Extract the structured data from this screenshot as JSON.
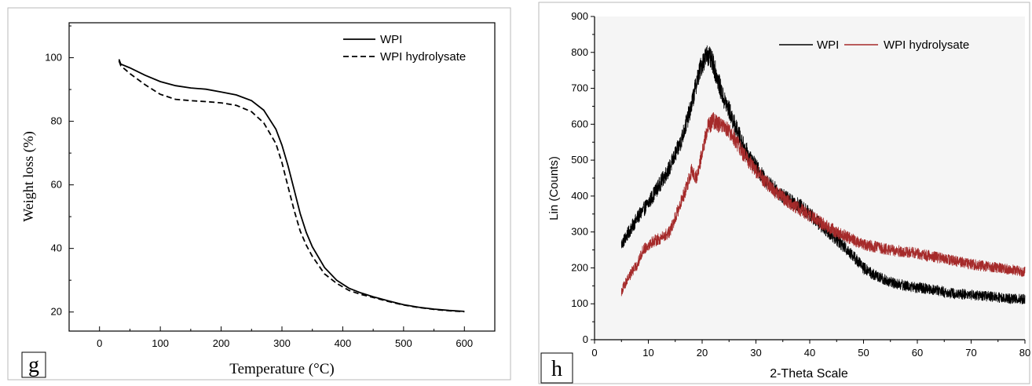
{
  "panels": {
    "g": {
      "label": "g"
    },
    "h": {
      "label": "h"
    }
  },
  "chart_data": [
    {
      "id": "g",
      "type": "line",
      "xlabel": "Temperature (°C)",
      "ylabel": "Weight loss (%)",
      "xlim": [
        -50,
        650
      ],
      "ylim": [
        14,
        111
      ],
      "xticks": [
        0,
        100,
        200,
        300,
        400,
        500,
        600
      ],
      "yticks": [
        20,
        40,
        60,
        80,
        100
      ],
      "legend_position": "top-right",
      "series": [
        {
          "name": "WPI",
          "style": "solid",
          "color": "#000000",
          "x": [
            32,
            35,
            50,
            75,
            100,
            125,
            150,
            175,
            200,
            225,
            250,
            270,
            290,
            300,
            310,
            320,
            330,
            340,
            350,
            370,
            390,
            410,
            430,
            450,
            475,
            500,
            525,
            550,
            575,
            600
          ],
          "y": [
            99.5,
            98,
            96.8,
            94.5,
            92.5,
            91.2,
            90.5,
            90.1,
            89.2,
            88.3,
            86.5,
            83.5,
            77.5,
            72.5,
            66,
            58.5,
            51,
            45,
            40.5,
            34,
            30,
            27.5,
            26,
            24.8,
            23.5,
            22.3,
            21.5,
            20.9,
            20.5,
            20.2
          ]
        },
        {
          "name": "WPI hydrolysate",
          "style": "dashed",
          "color": "#000000",
          "x": [
            32,
            35,
            50,
            75,
            100,
            125,
            150,
            175,
            200,
            225,
            250,
            270,
            290,
            300,
            310,
            320,
            330,
            340,
            350,
            370,
            390,
            410,
            430,
            450,
            475,
            500,
            525,
            550,
            575,
            600
          ],
          "y": [
            99,
            97.5,
            95,
            91.5,
            88.5,
            86.9,
            86.5,
            86.2,
            85.8,
            85,
            83,
            79.5,
            73,
            67,
            59.5,
            52,
            45.5,
            41,
            37.5,
            32,
            29,
            26.8,
            25.5,
            24.6,
            23.3,
            22.2,
            21.4,
            20.8,
            20.4,
            20.1
          ]
        }
      ]
    },
    {
      "id": "h",
      "type": "line",
      "xlabel": "2-Theta Scale",
      "ylabel": "Lin (Counts)",
      "xlim": [
        0,
        80
      ],
      "ylim": [
        0,
        900
      ],
      "xticks": [
        0,
        10,
        20,
        30,
        40,
        50,
        60,
        70,
        80
      ],
      "yticks": [
        0,
        100,
        200,
        300,
        400,
        500,
        600,
        700,
        800,
        900
      ],
      "grid": false,
      "legend_position": "top-right",
      "series": [
        {
          "name": "WPI",
          "color": "#000000",
          "noise": 22,
          "x": [
            5,
            6,
            8,
            10,
            12,
            14,
            16,
            18,
            19,
            20,
            21,
            22,
            23,
            24,
            25,
            26,
            28,
            30,
            32,
            35,
            38,
            40,
            42,
            45,
            48,
            50,
            52,
            55,
            58,
            60,
            63,
            66,
            70,
            75,
            80
          ],
          "y": [
            265,
            290,
            340,
            380,
            430,
            480,
            550,
            650,
            720,
            770,
            795,
            770,
            720,
            670,
            640,
            600,
            530,
            480,
            440,
            400,
            375,
            350,
            320,
            280,
            235,
            200,
            180,
            160,
            150,
            145,
            140,
            130,
            125,
            118,
            112
          ]
        },
        {
          "name": "WPI hydrolysate",
          "color": "#a52a2a",
          "noise": 20,
          "x": [
            5,
            6,
            7,
            8,
            9,
            10,
            11,
            12,
            14,
            16,
            17,
            18,
            19,
            20,
            21,
            22,
            23,
            24,
            25,
            26,
            28,
            30,
            33,
            36,
            40,
            45,
            50,
            55,
            60,
            65,
            70,
            75,
            80
          ],
          "y": [
            135,
            165,
            190,
            210,
            250,
            265,
            275,
            280,
            300,
            380,
            420,
            470,
            450,
            520,
            590,
            610,
            600,
            590,
            580,
            560,
            510,
            470,
            420,
            385,
            345,
            300,
            265,
            250,
            240,
            225,
            210,
            200,
            190
          ]
        }
      ]
    }
  ]
}
